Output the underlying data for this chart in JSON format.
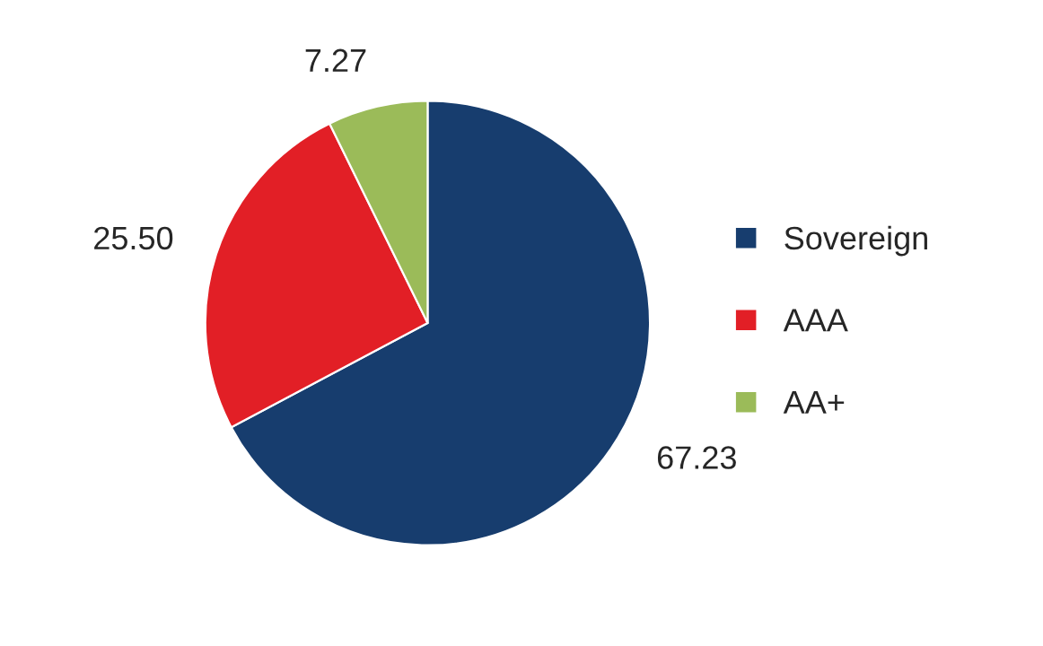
{
  "chart_data": {
    "type": "pie",
    "categories": [
      "Sovereign",
      "AAA",
      "AA+"
    ],
    "values": [
      67.23,
      25.5,
      7.27
    ],
    "value_labels": [
      "67.23",
      "25.50",
      "7.27"
    ],
    "colors": [
      "#173d6e",
      "#e21f26",
      "#9bbb59"
    ],
    "legend": "right"
  }
}
